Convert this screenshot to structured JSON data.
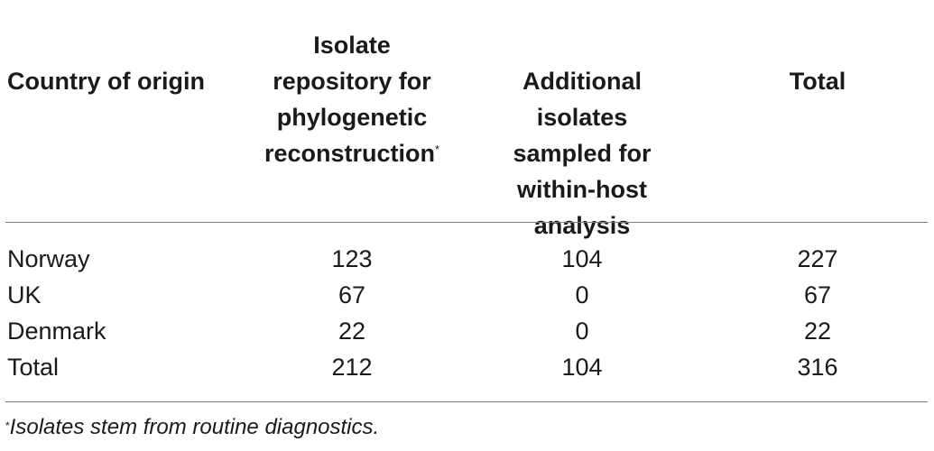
{
  "table": {
    "headers": {
      "country": "Country of origin",
      "repository": "Isolate\nrepository for\nphylogenetic\nreconstruction",
      "repository_marker": "*",
      "additional": "Additional\nisolates\nsampled for\nwithin-host\nanalysis",
      "total": "Total"
    },
    "rows": [
      {
        "country": "Norway",
        "repository": "123",
        "additional": "104",
        "total": "227"
      },
      {
        "country": "UK",
        "repository": "67",
        "additional": "0",
        "total": "67"
      },
      {
        "country": "Denmark",
        "repository": "22",
        "additional": "0",
        "total": "22"
      },
      {
        "country": "Total",
        "repository": "212",
        "additional": "104",
        "total": "316"
      }
    ]
  },
  "footnote": {
    "marker": "*",
    "text": "Isolates stem from routine diagnostics."
  }
}
